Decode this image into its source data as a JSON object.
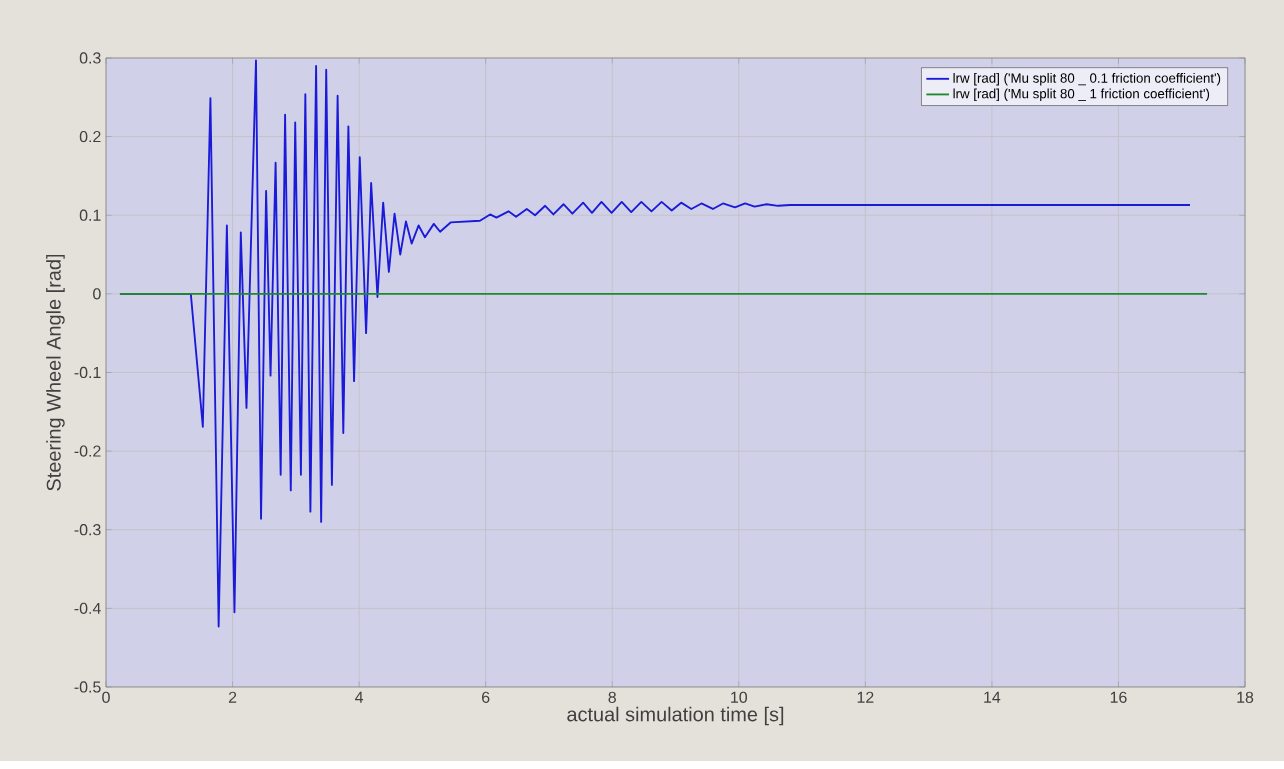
{
  "chart_data": {
    "type": "line",
    "xlabel": "actual simulation time [s]",
    "ylabel": "Steering Wheel Angle [rad]",
    "xlim": [
      0,
      18
    ],
    "ylim": [
      -0.5,
      0.3
    ],
    "xticks": [
      0,
      2,
      4,
      6,
      8,
      10,
      12,
      14,
      16,
      18
    ],
    "yticks": [
      -0.5,
      -0.4,
      -0.3,
      -0.2,
      -0.1,
      0,
      0.1,
      0.2,
      0.3
    ],
    "grid": true,
    "legend": "top right",
    "line_style": "solid",
    "series": [
      {
        "name": "lrw [rad] ('Mu split 80 _ 0.1 friction coefficient')",
        "color": "#1a1ad8",
        "x": [
          0.22,
          1.34,
          1.53,
          1.65,
          1.78,
          1.91,
          2.03,
          2.13,
          2.22,
          2.37,
          2.45,
          2.53,
          2.6,
          2.68,
          2.76,
          2.83,
          2.92,
          2.99,
          3.08,
          3.15,
          3.23,
          3.32,
          3.4,
          3.48,
          3.57,
          3.66,
          3.75,
          3.83,
          3.92,
          4.01,
          4.11,
          4.19,
          4.29,
          4.38,
          4.47,
          4.56,
          4.65,
          4.74,
          4.83,
          4.94,
          5.04,
          5.18,
          5.28,
          5.45,
          5.91,
          6.07,
          6.17,
          6.36,
          6.48,
          6.65,
          6.78,
          6.94,
          7.07,
          7.23,
          7.37,
          7.54,
          7.68,
          7.83,
          7.99,
          8.15,
          8.3,
          8.46,
          8.62,
          8.78,
          8.94,
          9.09,
          9.25,
          9.41,
          9.59,
          9.75,
          9.94,
          10.1,
          10.25,
          10.44,
          10.62,
          10.81,
          11.5,
          17.13
        ],
        "values": [
          0,
          0,
          -0.169,
          0.249,
          -0.423,
          0.087,
          -0.405,
          0.078,
          -0.145,
          0.297,
          -0.286,
          0.131,
          -0.104,
          0.167,
          -0.23,
          0.228,
          -0.25,
          0.218,
          -0.23,
          0.254,
          -0.277,
          0.29,
          -0.29,
          0.285,
          -0.243,
          0.252,
          -0.177,
          0.213,
          -0.111,
          0.174,
          -0.05,
          0.141,
          -0.004,
          0.116,
          0.028,
          0.102,
          0.05,
          0.092,
          0.064,
          0.087,
          0.072,
          0.089,
          0.079,
          0.091,
          0.093,
          0.101,
          0.097,
          0.105,
          0.098,
          0.108,
          0.1,
          0.112,
          0.101,
          0.114,
          0.102,
          0.116,
          0.103,
          0.117,
          0.103,
          0.117,
          0.104,
          0.117,
          0.105,
          0.117,
          0.106,
          0.116,
          0.108,
          0.115,
          0.108,
          0.115,
          0.11,
          0.115,
          0.111,
          0.114,
          0.112,
          0.113,
          0.113,
          0.113
        ]
      },
      {
        "name": "lrw [rad] ('Mu split 80 _ 1 friction coefficient')",
        "color": "#1f8a2a",
        "x": [
          0.22,
          17.4
        ],
        "values": [
          0,
          0
        ]
      }
    ]
  }
}
